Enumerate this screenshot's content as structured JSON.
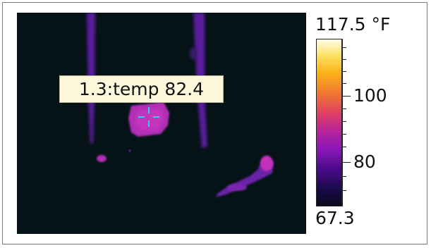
{
  "spot": {
    "label": "1.3:temp 82.4"
  },
  "scale": {
    "max_label": "117.5 °F",
    "min_label": "67.3",
    "tick_labels": [
      "100",
      "80"
    ],
    "palette": "iron"
  },
  "colors": {
    "background": "#051317",
    "crosshair": "#33ccee",
    "label_bg": "#fdf8dc"
  }
}
